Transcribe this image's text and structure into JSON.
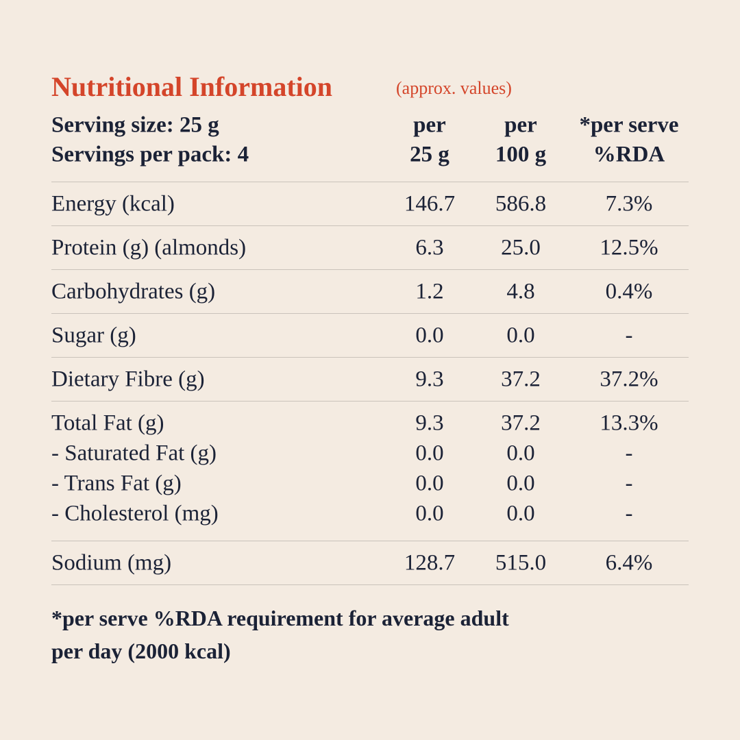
{
  "title": "Nutritional Information",
  "subtitle": "(approx. values)",
  "header": {
    "serving": [
      "Serving size: 25 g",
      "Servings per pack: 4"
    ],
    "columns": [
      [
        "per",
        "25 g"
      ],
      [
        "per",
        "100 g"
      ],
      [
        "*per serve",
        "%RDA"
      ]
    ]
  },
  "table": {
    "groups": [
      [
        [
          "Energy (kcal)",
          "146.7",
          "586.8",
          "7.3%"
        ]
      ],
      [
        [
          "Protein (g) (almonds)",
          "6.3",
          "25.0",
          "12.5%"
        ]
      ],
      [
        [
          "Carbohydrates (g)",
          "1.2",
          "4.8",
          "0.4%"
        ]
      ],
      [
        [
          "Sugar (g)",
          "0.0",
          "0.0",
          "-"
        ]
      ],
      [
        [
          "Dietary Fibre (g)",
          "9.3",
          "37.2",
          "37.2%"
        ]
      ],
      [
        [
          "Total Fat (g)",
          "9.3",
          "37.2",
          "13.3%"
        ],
        [
          "- Saturated Fat (g)",
          "0.0",
          "0.0",
          "-"
        ],
        [
          "- Trans Fat (g)",
          "0.0",
          "0.0",
          "-"
        ],
        [
          "- Cholesterol (mg)",
          "0.0",
          "0.0",
          "-"
        ]
      ],
      [
        [
          "Sodium (mg)",
          "128.7",
          "515.0",
          "6.4%"
        ]
      ]
    ]
  },
  "footnote": [
    "*per serve %RDA requirement for average adult",
    "per day (2000 kcal)"
  ]
}
